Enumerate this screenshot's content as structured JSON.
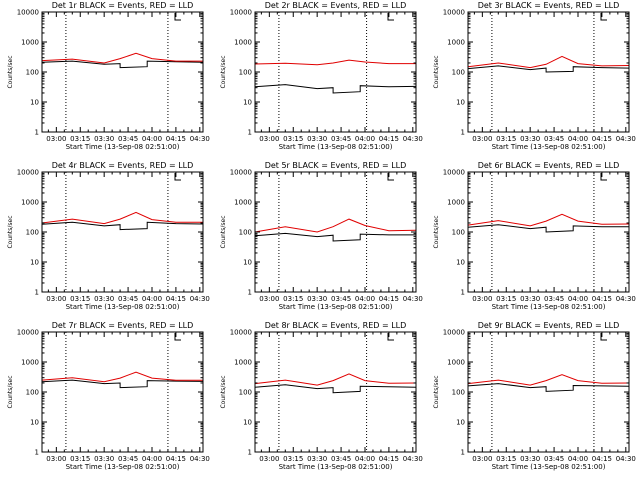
{
  "chart_data": [
    {
      "type": "line",
      "title": "Det 1r BLACK = Events, RED = LLD",
      "xlabel": "Start Time (13-Sep-08 02:51:00)",
      "ylabel": "Counts/sec",
      "x_tick_labels": [
        "03:00",
        "03:15",
        "03:30",
        "03:45",
        "04:00",
        "04:15",
        "04:30"
      ],
      "y_tick_labels": [
        "1",
        "10",
        "100",
        "1000",
        "10000"
      ],
      "xlim": [
        "02:51",
        "04:32"
      ],
      "ylim": [
        1,
        10000
      ],
      "y_scale": "log",
      "vlines": [
        "03:06",
        "04:10"
      ],
      "series": [
        {
          "color": "#000000",
          "x": [
            "02:51",
            "03:10",
            "03:30",
            "03:40",
            "03:40",
            "03:57",
            "03:57",
            "04:15",
            "04:32"
          ],
          "values": [
            210,
            230,
            180,
            190,
            140,
            150,
            230,
            220,
            210
          ]
        },
        {
          "color": "#e00000",
          "x": [
            "02:51",
            "03:10",
            "03:30",
            "03:40",
            "03:50",
            "04:00",
            "04:15",
            "04:32"
          ],
          "values": [
            240,
            270,
            200,
            280,
            420,
            280,
            230,
            230
          ]
        }
      ]
    },
    {
      "type": "line",
      "title": "Det 2r BLACK = Events, RED = LLD",
      "xlabel": "Start Time (13-Sep-08 02:51:00)",
      "ylabel": "Counts/sec",
      "x_tick_labels": [
        "03:00",
        "03:15",
        "03:30",
        "03:45",
        "04:00",
        "04:15",
        "04:30"
      ],
      "y_tick_labels": [
        "1",
        "10",
        "100",
        "1000",
        "10000"
      ],
      "xlim": [
        "02:51",
        "04:32"
      ],
      "ylim": [
        1,
        10000
      ],
      "y_scale": "log",
      "vlines": [
        "03:06",
        "04:01"
      ],
      "series": [
        {
          "color": "#000000",
          "x": [
            "02:51",
            "03:10",
            "03:30",
            "03:40",
            "03:40",
            "03:57",
            "03:57",
            "04:15",
            "04:32"
          ],
          "values": [
            32,
            38,
            28,
            30,
            20,
            22,
            35,
            32,
            33
          ]
        },
        {
          "color": "#e00000",
          "x": [
            "02:51",
            "03:10",
            "03:30",
            "03:40",
            "03:50",
            "04:00",
            "04:15",
            "04:32"
          ],
          "values": [
            185,
            195,
            175,
            200,
            250,
            215,
            190,
            190
          ]
        }
      ]
    },
    {
      "type": "line",
      "title": "Det 3r BLACK = Events, RED = LLD",
      "xlabel": "Start Time (13-Sep-08 02:51:00)",
      "ylabel": "Counts/sec",
      "x_tick_labels": [
        "03:00",
        "03:15",
        "03:30",
        "03:45",
        "04:00",
        "04:15",
        "04:30"
      ],
      "y_tick_labels": [
        "1",
        "10",
        "100",
        "1000",
        "10000"
      ],
      "xlim": [
        "02:51",
        "04:32"
      ],
      "ylim": [
        1,
        10000
      ],
      "y_scale": "log",
      "vlines": [
        "03:06",
        "04:10"
      ],
      "series": [
        {
          "color": "#000000",
          "x": [
            "02:51",
            "03:10",
            "03:30",
            "03:40",
            "03:40",
            "03:57",
            "03:57",
            "04:15",
            "04:32"
          ],
          "values": [
            130,
            160,
            120,
            135,
            100,
            105,
            150,
            140,
            135
          ]
        },
        {
          "color": "#e00000",
          "x": [
            "02:51",
            "03:10",
            "03:30",
            "03:40",
            "03:50",
            "04:00",
            "04:15",
            "04:32"
          ],
          "values": [
            150,
            200,
            140,
            180,
            330,
            190,
            160,
            165
          ]
        }
      ]
    },
    {
      "type": "line",
      "title": "Det 4r BLACK = Events, RED = LLD",
      "xlabel": "Start Time (13-Sep-08 02:51:00)",
      "ylabel": "Counts/sec",
      "x_tick_labels": [
        "03:00",
        "03:15",
        "03:30",
        "03:45",
        "04:00",
        "04:15",
        "04:30"
      ],
      "y_tick_labels": [
        "1",
        "10",
        "100",
        "1000",
        "10000"
      ],
      "xlim": [
        "02:51",
        "04:32"
      ],
      "ylim": [
        1,
        10000
      ],
      "y_scale": "log",
      "vlines": [
        "03:06",
        "04:10"
      ],
      "series": [
        {
          "color": "#000000",
          "x": [
            "02:51",
            "03:10",
            "03:30",
            "03:40",
            "03:40",
            "03:57",
            "03:57",
            "04:15",
            "04:32"
          ],
          "values": [
            180,
            210,
            160,
            175,
            120,
            130,
            210,
            190,
            185
          ]
        },
        {
          "color": "#e00000",
          "x": [
            "02:51",
            "03:10",
            "03:30",
            "03:40",
            "03:50",
            "04:00",
            "04:15",
            "04:32"
          ],
          "values": [
            200,
            270,
            190,
            270,
            450,
            260,
            210,
            210
          ]
        }
      ]
    },
    {
      "type": "line",
      "title": "Det 5r BLACK = Events, RED = LLD",
      "xlabel": "Start Time (13-Sep-08 02:51:00)",
      "ylabel": "Counts/sec",
      "x_tick_labels": [
        "03:00",
        "03:15",
        "03:30",
        "03:45",
        "04:00",
        "04:15",
        "04:30"
      ],
      "y_tick_labels": [
        "1",
        "10",
        "100",
        "1000",
        "10000"
      ],
      "xlim": [
        "02:51",
        "04:32"
      ],
      "ylim": [
        1,
        10000
      ],
      "y_scale": "log",
      "vlines": [
        "03:06",
        "04:01"
      ],
      "series": [
        {
          "color": "#000000",
          "x": [
            "02:51",
            "03:10",
            "03:30",
            "03:40",
            "03:40",
            "03:57",
            "03:57",
            "04:15",
            "04:32"
          ],
          "values": [
            75,
            90,
            70,
            78,
            50,
            55,
            85,
            80,
            80
          ]
        },
        {
          "color": "#e00000",
          "x": [
            "02:51",
            "03:10",
            "03:30",
            "03:40",
            "03:50",
            "04:00",
            "04:15",
            "04:32"
          ],
          "values": [
            100,
            150,
            100,
            150,
            270,
            165,
            110,
            115
          ]
        }
      ]
    },
    {
      "type": "line",
      "title": "Det 6r BLACK = Events, RED = LLD",
      "xlabel": "Start Time (13-Sep-08 02:51:00)",
      "ylabel": "Counts/sec",
      "x_tick_labels": [
        "03:00",
        "03:15",
        "03:30",
        "03:45",
        "04:00",
        "04:15",
        "04:30"
      ],
      "y_tick_labels": [
        "1",
        "10",
        "100",
        "1000",
        "10000"
      ],
      "xlim": [
        "02:51",
        "04:32"
      ],
      "ylim": [
        1,
        10000
      ],
      "y_scale": "log",
      "vlines": [
        "03:06",
        "04:10"
      ],
      "series": [
        {
          "color": "#000000",
          "x": [
            "02:51",
            "03:10",
            "03:30",
            "03:40",
            "03:40",
            "03:57",
            "03:57",
            "04:15",
            "04:32"
          ],
          "values": [
            145,
            175,
            130,
            145,
            100,
            110,
            160,
            150,
            150
          ]
        },
        {
          "color": "#e00000",
          "x": [
            "02:51",
            "03:10",
            "03:30",
            "03:40",
            "03:50",
            "04:00",
            "04:15",
            "04:32"
          ],
          "values": [
            170,
            240,
            160,
            230,
            390,
            230,
            180,
            185
          ]
        }
      ]
    },
    {
      "type": "line",
      "title": "Det 7r BLACK = Events, RED = LLD",
      "xlabel": "Start Time (13-Sep-08 02:51:00)",
      "ylabel": "Counts/sec",
      "x_tick_labels": [
        "03:00",
        "03:15",
        "03:30",
        "03:45",
        "04:00",
        "04:15",
        "04:30"
      ],
      "y_tick_labels": [
        "1",
        "10",
        "100",
        "1000",
        "10000"
      ],
      "xlim": [
        "02:51",
        "04:32"
      ],
      "ylim": [
        1,
        10000
      ],
      "y_scale": "log",
      "vlines": [
        "03:06",
        "04:10"
      ],
      "series": [
        {
          "color": "#000000",
          "x": [
            "02:51",
            "03:10",
            "03:30",
            "03:40",
            "03:40",
            "03:57",
            "03:57",
            "04:15",
            "04:32"
          ],
          "values": [
            220,
            250,
            190,
            200,
            140,
            150,
            240,
            230,
            225
          ]
        },
        {
          "color": "#e00000",
          "x": [
            "02:51",
            "03:10",
            "03:30",
            "03:40",
            "03:50",
            "04:00",
            "04:15",
            "04:32"
          ],
          "values": [
            250,
            300,
            220,
            290,
            460,
            290,
            245,
            245
          ]
        }
      ]
    },
    {
      "type": "line",
      "title": "Det 8r BLACK = Events, RED = LLD",
      "xlabel": "Start Time (13-Sep-08 02:51:00)",
      "ylabel": "Counts/sec",
      "x_tick_labels": [
        "03:00",
        "03:15",
        "03:30",
        "03:45",
        "04:00",
        "04:15",
        "04:30"
      ],
      "y_tick_labels": [
        "1",
        "10",
        "100",
        "1000",
        "10000"
      ],
      "xlim": [
        "02:51",
        "04:32"
      ],
      "ylim": [
        1,
        10000
      ],
      "y_scale": "log",
      "vlines": [
        "03:06",
        "04:01"
      ],
      "series": [
        {
          "color": "#000000",
          "x": [
            "02:51",
            "03:10",
            "03:30",
            "03:40",
            "03:40",
            "03:57",
            "03:57",
            "04:15",
            "04:32"
          ],
          "values": [
            145,
            175,
            130,
            140,
            95,
            105,
            155,
            150,
            145
          ]
        },
        {
          "color": "#e00000",
          "x": [
            "02:51",
            "03:10",
            "03:30",
            "03:40",
            "03:50",
            "04:00",
            "04:15",
            "04:32"
          ],
          "values": [
            190,
            250,
            170,
            240,
            400,
            240,
            195,
            200
          ]
        }
      ]
    },
    {
      "type": "line",
      "title": "Det 9r BLACK = Events, RED = LLD",
      "xlabel": "Start Time (13-Sep-08 02:51:00)",
      "ylabel": "Counts/sec",
      "x_tick_labels": [
        "03:00",
        "03:15",
        "03:30",
        "03:45",
        "04:00",
        "04:15",
        "04:30"
      ],
      "y_tick_labels": [
        "1",
        "10",
        "100",
        "1000",
        "10000"
      ],
      "xlim": [
        "02:51",
        "04:32"
      ],
      "ylim": [
        1,
        10000
      ],
      "y_scale": "log",
      "vlines": [
        "03:06",
        "04:10"
      ],
      "series": [
        {
          "color": "#000000",
          "x": [
            "02:51",
            "03:10",
            "03:30",
            "03:40",
            "03:40",
            "03:57",
            "03:57",
            "04:15",
            "04:32"
          ],
          "values": [
            160,
            190,
            140,
            150,
            105,
            115,
            165,
            160,
            155
          ]
        },
        {
          "color": "#e00000",
          "x": [
            "02:51",
            "03:10",
            "03:30",
            "03:40",
            "03:50",
            "04:00",
            "04:15",
            "04:32"
          ],
          "values": [
            190,
            250,
            170,
            240,
            380,
            240,
            195,
            200
          ]
        }
      ]
    }
  ]
}
